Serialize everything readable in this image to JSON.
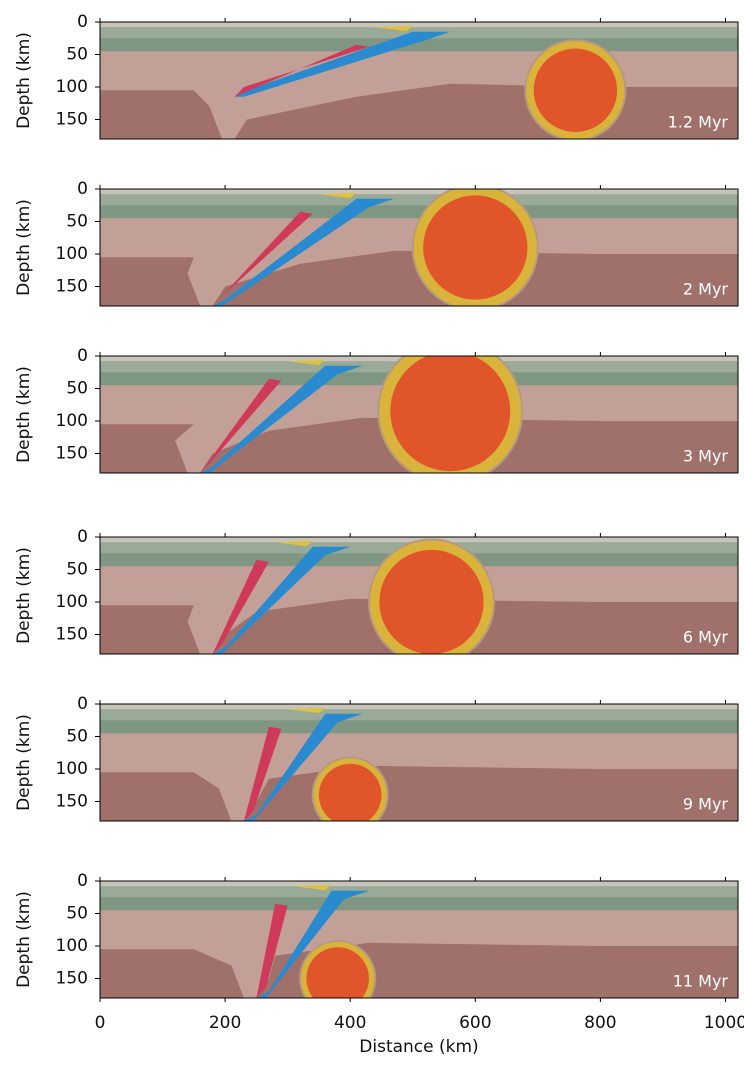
{
  "chart_data": [
    {
      "type": "image",
      "ylabel": "Depth (km)",
      "annotation": "1.2 Myr",
      "xlim": [
        0,
        1020
      ],
      "ylim": [
        180,
        0
      ],
      "yticks": [
        0,
        50,
        100,
        150
      ]
    },
    {
      "type": "image",
      "ylabel": "Depth (km)",
      "annotation": "2 Myr",
      "xlim": [
        0,
        1020
      ],
      "ylim": [
        180,
        0
      ],
      "yticks": [
        0,
        50,
        100,
        150
      ]
    },
    {
      "type": "image",
      "ylabel": "Depth (km)",
      "annotation": "3 Myr",
      "xlim": [
        0,
        1020
      ],
      "ylim": [
        180,
        0
      ],
      "yticks": [
        0,
        50,
        100,
        150
      ]
    },
    {
      "type": "image",
      "ylabel": "Depth (km)",
      "annotation": "6 Myr",
      "xlim": [
        0,
        1020
      ],
      "ylim": [
        180,
        0
      ],
      "yticks": [
        0,
        50,
        100,
        150
      ]
    },
    {
      "type": "image",
      "ylabel": "Depth (km)",
      "annotation": "9 Myr",
      "xlim": [
        0,
        1020
      ],
      "ylim": [
        180,
        0
      ],
      "yticks": [
        0,
        50,
        100,
        150
      ]
    },
    {
      "type": "image",
      "ylabel": "Depth (km)",
      "annotation": "11 Myr",
      "xlim": [
        0,
        1020
      ],
      "ylim": [
        180,
        0
      ],
      "yticks": [
        0,
        50,
        100,
        150
      ],
      "xticks": [
        0,
        200,
        400,
        600,
        800,
        1000
      ],
      "xlabel": "Distance (km)"
    }
  ]
}
